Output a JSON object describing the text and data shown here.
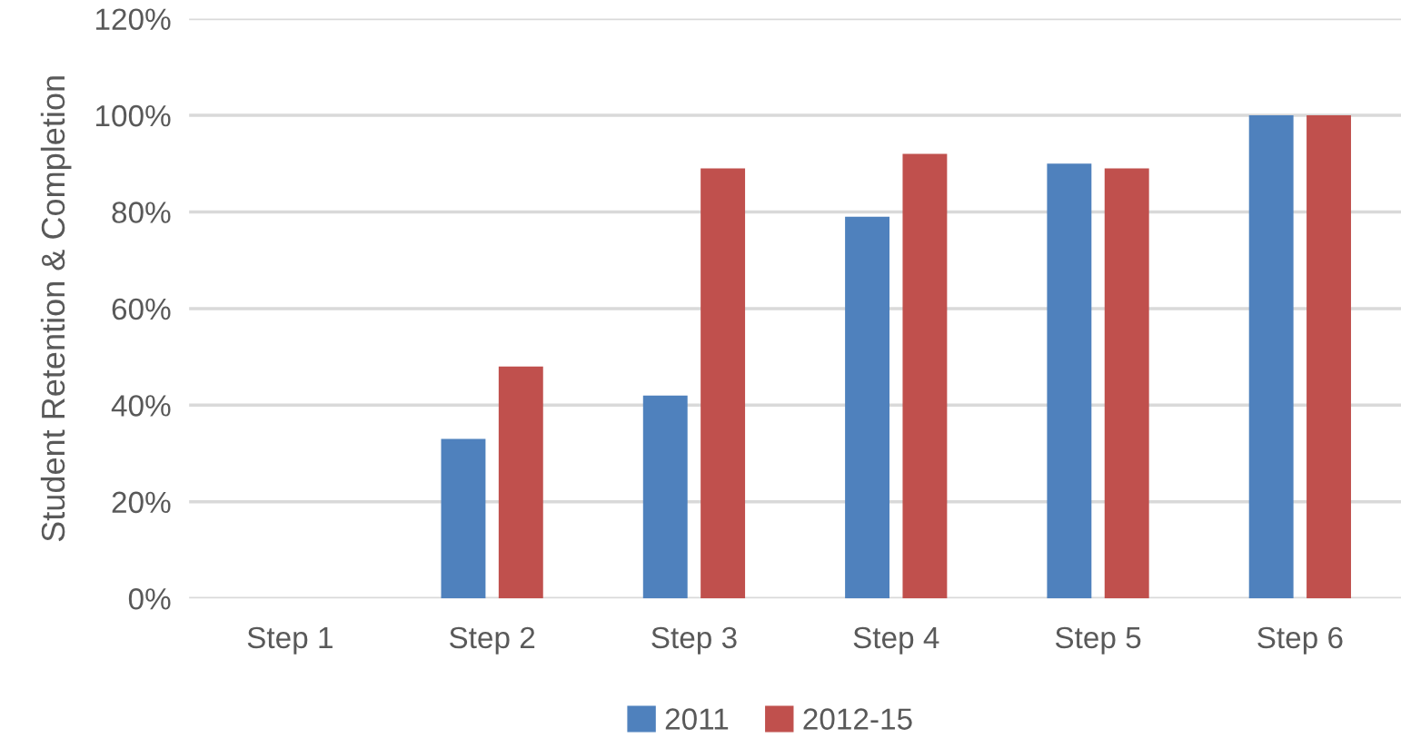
{
  "chart_data": {
    "type": "bar",
    "ylabel": "Student Retention & Completion",
    "categories": [
      "Step 1",
      "Step 2",
      "Step 3",
      "Step 4",
      "Step 5",
      "Step 6"
    ],
    "series": [
      {
        "name": "2011",
        "color": "#4f81bd",
        "values": [
          null,
          33,
          42,
          79,
          90,
          100
        ]
      },
      {
        "name": "2012-15",
        "color": "#c0504d",
        "values": [
          null,
          48,
          89,
          92,
          89,
          100
        ]
      }
    ],
    "ylim": [
      0,
      120
    ],
    "yticks": [
      {
        "value": 0,
        "label": "0%"
      },
      {
        "value": 20,
        "label": "20%"
      },
      {
        "value": 40,
        "label": "40%"
      },
      {
        "value": 60,
        "label": "60%"
      },
      {
        "value": 80,
        "label": "80%"
      },
      {
        "value": 100,
        "label": "100%"
      },
      {
        "value": 120,
        "label": "120%"
      }
    ],
    "grid": "y",
    "legend": "bottom"
  }
}
